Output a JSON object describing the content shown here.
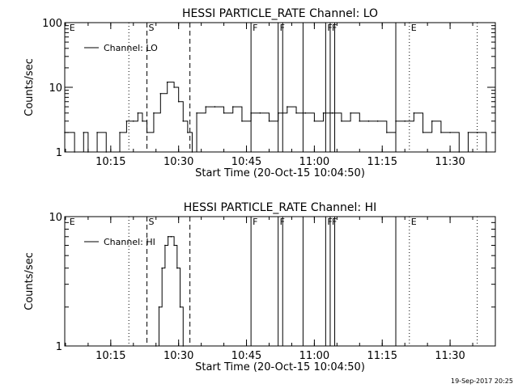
{
  "timestamp": "19-Sep-2017 20:25",
  "chart_data": [
    {
      "type": "line",
      "title": "HESSI PARTICLE_RATE Channel: LO",
      "xlabel": "Start Time (20-Oct-15 10:04:50)",
      "ylabel": "Counts/sec",
      "y_scale": "log",
      "ylim": [
        1,
        100
      ],
      "xlim": [
        "10:04:50",
        "11:40:00"
      ],
      "y_tick_labels": [
        "1",
        "10",
        "100"
      ],
      "x_tick_labels": [
        "10:15",
        "10:30",
        "10:45",
        "11:00",
        "11:15",
        "11:30"
      ],
      "legend": {
        "placement": "top-left",
        "entries": [
          "Channel: LO"
        ]
      },
      "markers": [
        {
          "time": "10:05:30",
          "label": "E",
          "style": "none"
        },
        {
          "time": "10:19:00",
          "label": "",
          "style": "dotted"
        },
        {
          "time": "10:23:00",
          "label": "S",
          "style": "dashed"
        },
        {
          "time": "10:32:30",
          "label": "",
          "style": "dashed"
        },
        {
          "time": "10:46:00",
          "label": "F",
          "style": "solid"
        },
        {
          "time": "10:52:00",
          "label": "F",
          "style": "solid"
        },
        {
          "time": "10:53:00",
          "label": "",
          "style": "solid"
        },
        {
          "time": "10:57:30",
          "label": "",
          "style": "solid"
        },
        {
          "time": "11:02:30",
          "label": "F",
          "style": "solid"
        },
        {
          "time": "11:03:30",
          "label": "F",
          "style": "solid"
        },
        {
          "time": "11:04:30",
          "label": "",
          "style": "solid"
        },
        {
          "time": "11:18:00",
          "label": "",
          "style": "solid"
        },
        {
          "time": "11:21:00",
          "label": "E",
          "style": "dotted"
        },
        {
          "time": "11:36:00",
          "label": "",
          "style": "dotted"
        }
      ],
      "series": [
        {
          "name": "Channel: LO",
          "x": [
            "10:04:50",
            "10:07:00",
            "10:09:00",
            "10:10:00",
            "10:12:00",
            "10:14:00",
            "10:17:00",
            "10:18:30",
            "10:20:00",
            "10:21:00",
            "10:22:00",
            "10:23:00",
            "10:24:30",
            "10:26:00",
            "10:27:30",
            "10:29:00",
            "10:30:00",
            "10:31:00",
            "10:32:00",
            "10:33:00",
            "10:34:00",
            "10:36:00",
            "10:38:00",
            "10:40:00",
            "10:42:00",
            "10:44:00",
            "10:46:00",
            "10:48:00",
            "10:50:00",
            "10:52:00",
            "10:54:00",
            "10:56:00",
            "10:58:00",
            "11:00:00",
            "11:02:00",
            "11:04:00",
            "11:06:00",
            "11:08:00",
            "11:10:00",
            "11:12:00",
            "11:14:00",
            "11:16:00",
            "11:18:00",
            "11:20:00",
            "11:22:00",
            "11:24:00",
            "11:26:00",
            "11:28:00",
            "11:30:00",
            "11:32:00",
            "11:34:00",
            "11:36:00",
            "11:38:00",
            "11:40:00"
          ],
          "y": [
            2,
            1,
            2,
            1,
            2,
            1,
            2,
            3,
            3,
            4,
            3,
            2,
            4,
            8,
            12,
            10,
            6,
            3,
            2,
            1,
            4,
            5,
            5,
            4,
            5,
            3,
            4,
            4,
            3,
            4,
            5,
            4,
            4,
            3,
            4,
            4,
            3,
            4,
            3,
            3,
            3,
            2,
            3,
            3,
            4,
            2,
            3,
            2,
            2,
            1,
            2,
            2,
            1,
            2
          ]
        }
      ]
    },
    {
      "type": "line",
      "title": "HESSI PARTICLE_RATE Channel: HI",
      "xlabel": "Start Time (20-Oct-15 10:04:50)",
      "ylabel": "Counts/sec",
      "y_scale": "log",
      "ylim": [
        1,
        10
      ],
      "xlim": [
        "10:04:50",
        "11:40:00"
      ],
      "y_tick_labels": [
        "1",
        "10"
      ],
      "x_tick_labels": [
        "10:15",
        "10:30",
        "10:45",
        "11:00",
        "11:15",
        "11:30"
      ],
      "legend": {
        "placement": "top-left",
        "entries": [
          "Channel: HI"
        ]
      },
      "markers": [
        {
          "time": "10:05:30",
          "label": "E",
          "style": "none"
        },
        {
          "time": "10:19:00",
          "label": "",
          "style": "dotted"
        },
        {
          "time": "10:23:00",
          "label": "S",
          "style": "dashed"
        },
        {
          "time": "10:32:30",
          "label": "",
          "style": "dashed"
        },
        {
          "time": "10:46:00",
          "label": "F",
          "style": "solid"
        },
        {
          "time": "10:52:00",
          "label": "F",
          "style": "solid"
        },
        {
          "time": "10:53:00",
          "label": "",
          "style": "solid"
        },
        {
          "time": "10:57:30",
          "label": "",
          "style": "solid"
        },
        {
          "time": "11:02:30",
          "label": "F",
          "style": "solid"
        },
        {
          "time": "11:03:30",
          "label": "F",
          "style": "solid"
        },
        {
          "time": "11:04:30",
          "label": "",
          "style": "solid"
        },
        {
          "time": "11:18:00",
          "label": "",
          "style": "solid"
        },
        {
          "time": "11:21:00",
          "label": "E",
          "style": "dotted"
        },
        {
          "time": "11:36:00",
          "label": "",
          "style": "dotted"
        }
      ],
      "series": [
        {
          "name": "Channel: HI",
          "x": [
            "10:25:00",
            "10:25:40",
            "10:26:20",
            "10:27:00",
            "10:27:40",
            "10:28:20",
            "10:29:00",
            "10:29:40",
            "10:30:20",
            "10:31:00"
          ],
          "y": [
            1,
            2,
            4,
            6,
            7,
            7,
            6,
            4,
            2,
            1
          ]
        }
      ]
    }
  ]
}
